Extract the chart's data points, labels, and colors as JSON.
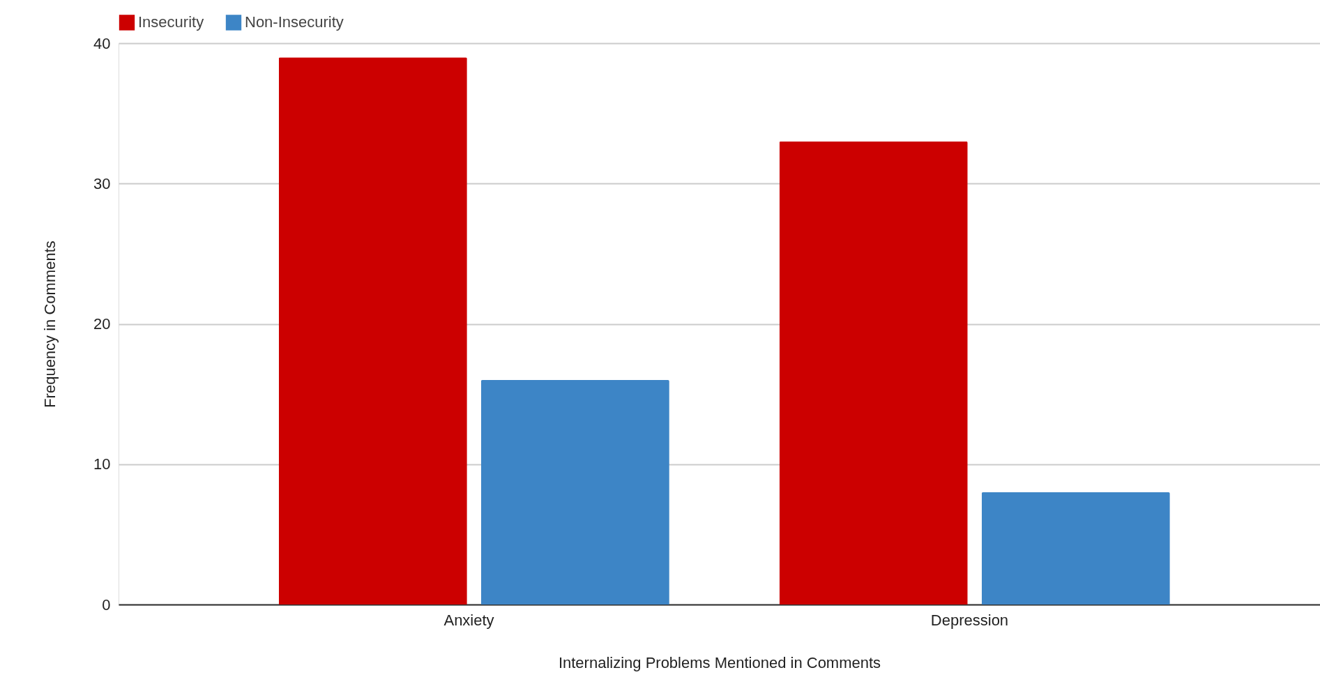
{
  "chart_data": {
    "type": "bar",
    "xlabel": "Internalizing Problems Mentioned in Comments",
    "ylabel": "Frequency in Comments",
    "categories": [
      "Anxiety",
      "Depression"
    ],
    "series": [
      {
        "name": "Insecurity",
        "color": "#cc0000",
        "values": [
          39,
          33
        ]
      },
      {
        "name": "Non-Insecurity",
        "color": "#3d85c6",
        "values": [
          16,
          8
        ]
      }
    ],
    "ylim": [
      0,
      40
    ],
    "yticks": [
      0,
      10,
      20,
      30,
      40
    ],
    "grid": "y",
    "legend": "top"
  }
}
